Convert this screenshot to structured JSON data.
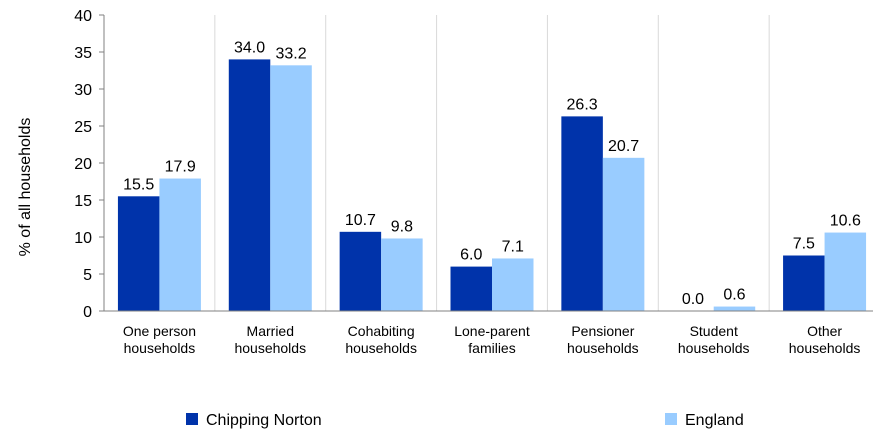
{
  "chart_data": {
    "type": "bar",
    "title": "",
    "xlabel": "",
    "ylabel": "% of all households",
    "ylim": [
      0,
      40
    ],
    "yticks": [
      0,
      5,
      10,
      15,
      20,
      25,
      30,
      35,
      40
    ],
    "grid": "vertical separators",
    "legend_position": "bottom",
    "categories": [
      [
        "One person",
        "households"
      ],
      [
        "Married",
        "households"
      ],
      [
        "Cohabiting",
        "households"
      ],
      [
        "Lone-parent",
        "families"
      ],
      [
        "Pensioner",
        "households"
      ],
      [
        "Student",
        "households"
      ],
      [
        "Other",
        "households"
      ]
    ],
    "series": [
      {
        "name": "Chipping Norton",
        "color": "#0033aa",
        "values": [
          15.5,
          34.0,
          10.7,
          6.0,
          26.3,
          0.0,
          7.5
        ]
      },
      {
        "name": "England",
        "color": "#99ccff",
        "values": [
          17.9,
          33.2,
          9.8,
          7.1,
          20.7,
          0.6,
          10.6
        ]
      }
    ]
  }
}
